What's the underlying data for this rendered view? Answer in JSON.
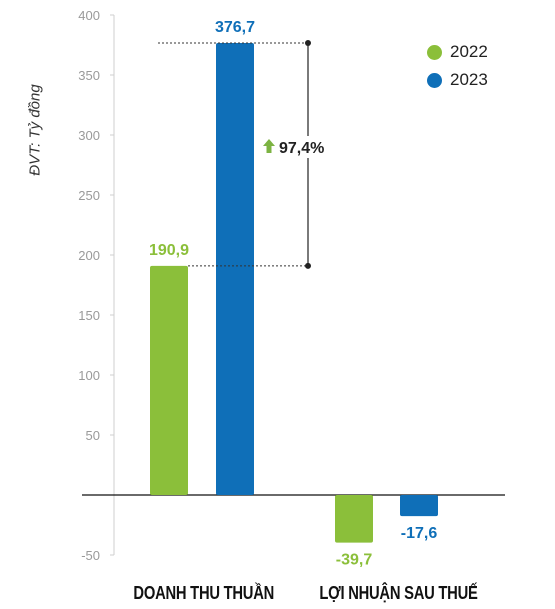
{
  "unit_label": "ĐVT: Tỷ đồng",
  "legend": [
    {
      "label": "2022",
      "color": "#8bbf3a"
    },
    {
      "label": "2023",
      "color": "#0f6fb8"
    }
  ],
  "growth_label": "97,4%",
  "growth_color": "#7cb342",
  "chart_data": {
    "type": "bar",
    "categories": [
      "DOANH THU THUẦN",
      "LỢI NHUẬN SAU THUẾ"
    ],
    "series": [
      {
        "name": "2022",
        "values": [
          190.9,
          -39.7
        ],
        "labels": [
          "190,9",
          "-39,7"
        ],
        "color": "#8bbf3a"
      },
      {
        "name": "2023",
        "values": [
          376.7,
          -17.6
        ],
        "labels": [
          "376,7",
          "-17,6"
        ],
        "color": "#0f6fb8"
      }
    ],
    "y_ticks": [
      400,
      350,
      300,
      250,
      200,
      150,
      100,
      50,
      0,
      -50
    ],
    "y_tick_labels": [
      "400",
      "350",
      "300",
      "250",
      "200",
      "150",
      "100",
      "50",
      "",
      "-50"
    ],
    "ylim": [
      -50,
      400
    ],
    "grid": false
  }
}
